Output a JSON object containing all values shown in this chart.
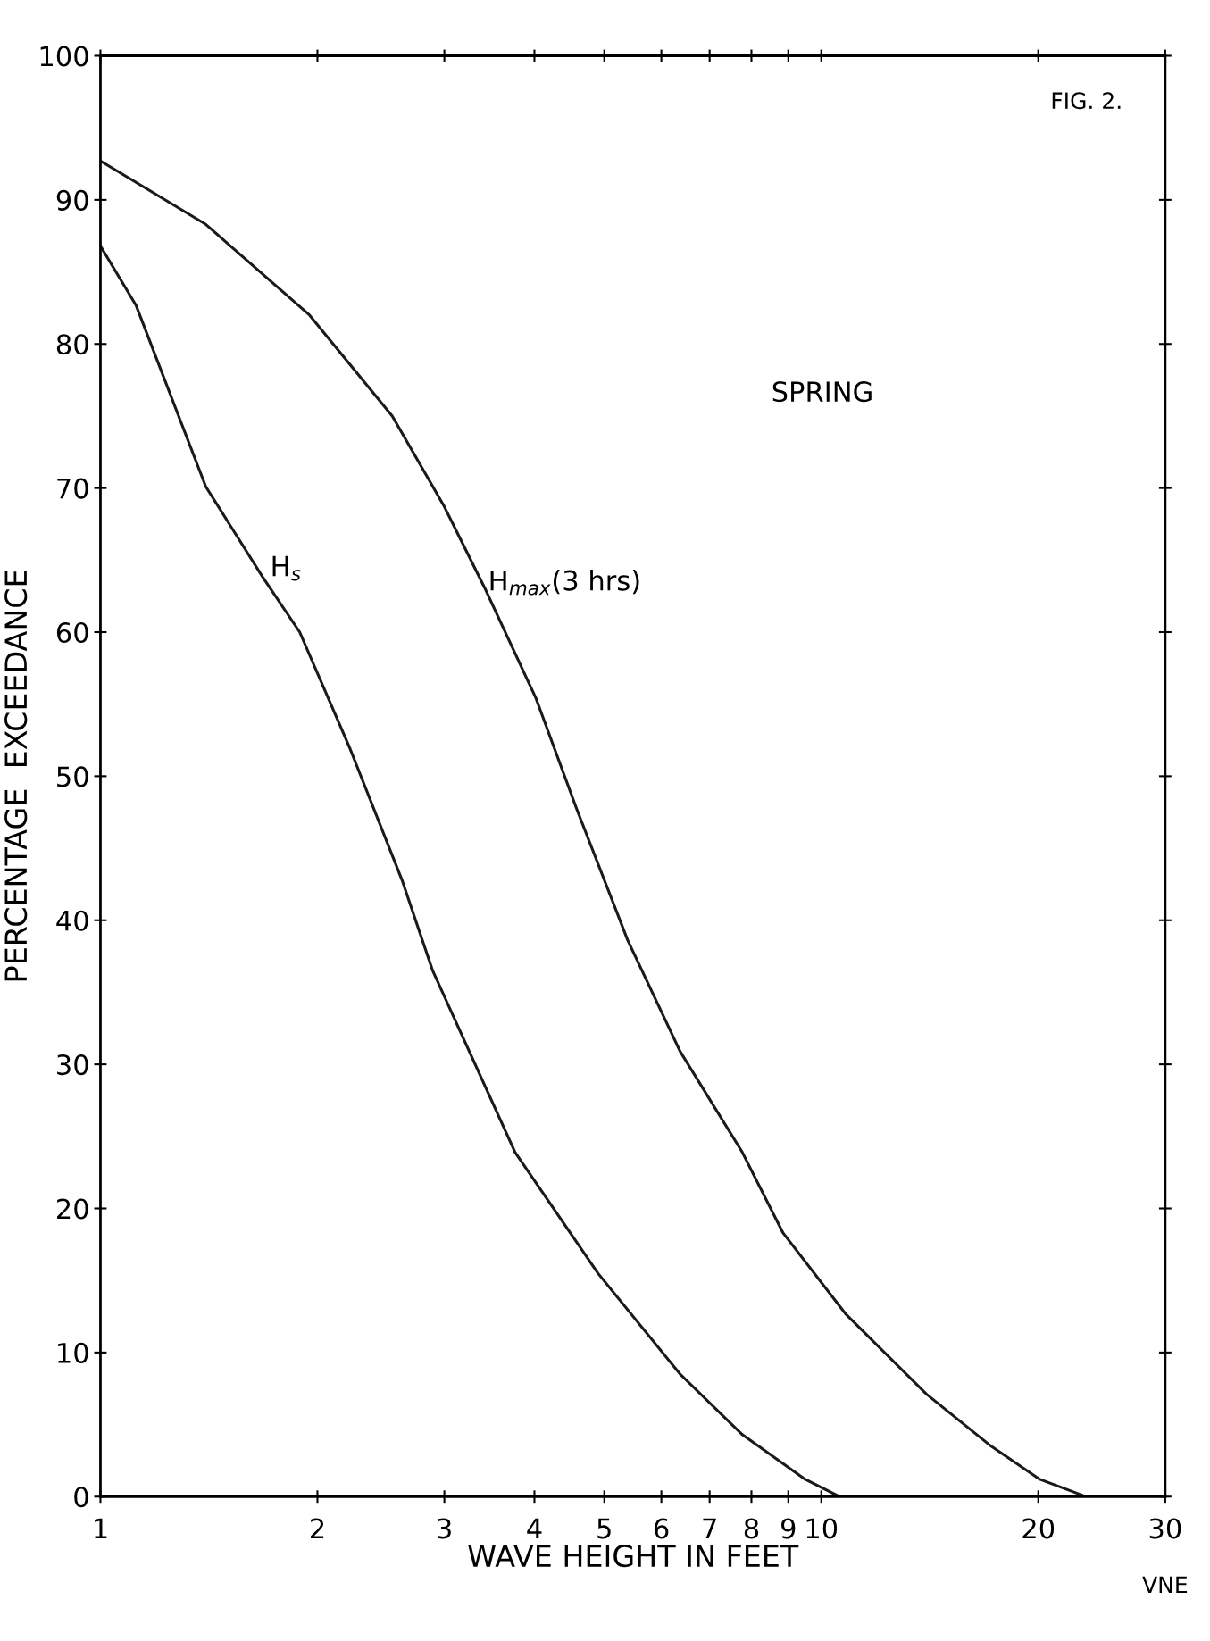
{
  "chart_data": {
    "type": "line",
    "title": "SPRING",
    "xlabel": "WAVE HEIGHT IN FEET",
    "ylabel": "PERCENTAGE  EXCEEDANCE",
    "log": "x",
    "grid": false,
    "legend": false,
    "marker": "none",
    "line_style": "solid",
    "xlim": [
      1,
      30
    ],
    "xticks": [
      1,
      2,
      3,
      4,
      5,
      6,
      7,
      8,
      9,
      10,
      20,
      30
    ],
    "ylim": [
      0,
      100
    ],
    "yticks": [
      0,
      10,
      20,
      30,
      40,
      50,
      60,
      70,
      80,
      90,
      100
    ],
    "series": [
      {
        "color": "#1a1a1a",
        "x": [
          1,
          1.12,
          1.4,
          1.68,
          1.89,
          2.22,
          2.62,
          2.89,
          3.76,
          4.9,
          6.37,
          7.77,
          9.5,
          10.6
        ],
        "values": [
          86.8,
          82.7,
          70.1,
          63.8,
          60,
          51.9,
          42.8,
          36.5,
          23.9,
          15.5,
          8.5,
          4.3,
          1.2,
          0
        ]
      },
      {
        "color": "#1a1a1a",
        "x": [
          1,
          1.4,
          1.95,
          2.54,
          3.0,
          3.41,
          4.02,
          4.58,
          5.39,
          6.37,
          7.77,
          8.85,
          10.8,
          14.0,
          17.1,
          20.1,
          23.0
        ],
        "values": [
          92.7,
          88.3,
          82.0,
          75.0,
          68.7,
          63.1,
          55.4,
          47.7,
          38.6,
          30.9,
          23.9,
          18.3,
          12.7,
          7.1,
          3.6,
          1.2,
          0.1
        ]
      }
    ],
    "annotations": [
      "FIG. 2.",
      "VNE",
      {
        "text": "H$_{s}$",
        "x": 1.72,
        "y": 63.5
      },
      {
        "text": "H$_{max}$(3 hrs)",
        "x": 3.45,
        "y": 62.5
      }
    ]
  }
}
